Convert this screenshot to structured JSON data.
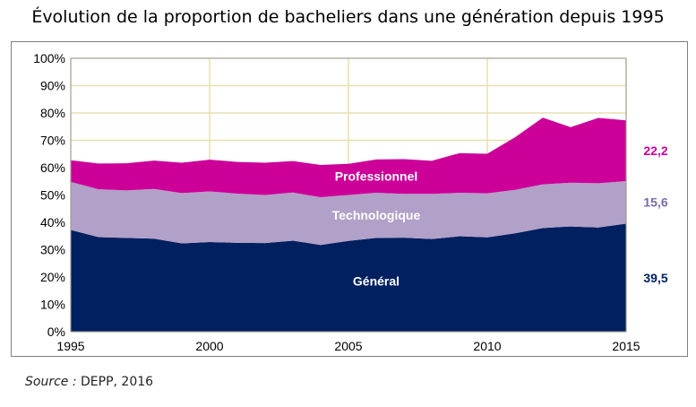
{
  "chart_data": {
    "type": "area",
    "stacked": true,
    "title": "Évolution de la proportion de bacheliers dans une génération depuis 1995",
    "x": [
      1995,
      1996,
      1997,
      1998,
      1999,
      2000,
      2001,
      2002,
      2003,
      2004,
      2005,
      2006,
      2007,
      2008,
      2009,
      2010,
      2011,
      2012,
      2013,
      2014,
      2015
    ],
    "x_ticks": [
      "1995",
      "2000",
      "2005",
      "2010",
      "2015"
    ],
    "y_ticks": [
      "0%",
      "10%",
      "20%",
      "30%",
      "40%",
      "50%",
      "60%",
      "70%",
      "80%",
      "90%",
      "100%"
    ],
    "ylim": [
      0,
      100
    ],
    "grid": true,
    "series": [
      {
        "name": "Général",
        "color": "#002060",
        "values": [
          37.2,
          34.6,
          34.3,
          34.0,
          32.3,
          32.8,
          32.5,
          32.4,
          33.3,
          31.7,
          33.2,
          34.3,
          34.4,
          33.9,
          34.9,
          34.5,
          36.0,
          37.9,
          38.5,
          38.1,
          39.5
        ]
      },
      {
        "name": "Technologique",
        "color": "#b1a0c7",
        "values": [
          17.6,
          17.5,
          17.4,
          18.2,
          18.4,
          18.5,
          18.0,
          17.6,
          17.6,
          17.5,
          16.8,
          16.5,
          16.0,
          16.5,
          15.9,
          16.1,
          15.9,
          16.0,
          16.0,
          16.2,
          15.6
        ]
      },
      {
        "name": "Professionnel",
        "color": "#cc0099",
        "values": [
          7.9,
          9.4,
          9.9,
          10.4,
          11.1,
          11.6,
          11.6,
          11.8,
          11.5,
          11.8,
          11.4,
          12.2,
          12.7,
          12.1,
          14.5,
          14.5,
          19.2,
          24.4,
          20.3,
          23.9,
          22.2
        ]
      }
    ],
    "end_labels": [
      {
        "text": "22,2",
        "color": "#cc0099"
      },
      {
        "text": "15,6",
        "color": "#7a6aa8"
      },
      {
        "text": "39,5",
        "color": "#002060"
      }
    ]
  },
  "source": {
    "label": "Source :",
    "text": "DEPP, 2016"
  }
}
